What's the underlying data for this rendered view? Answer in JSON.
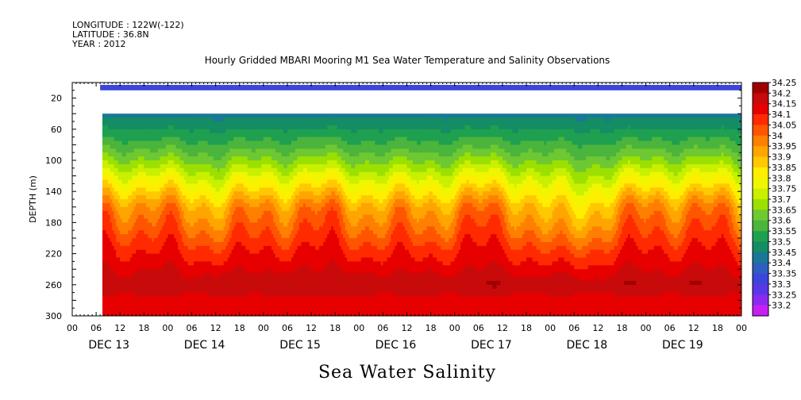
{
  "header": {
    "longitude": "LONGITUDE : 122W(-122)",
    "latitude": "LATITUDE : 36.8N",
    "year": "YEAR : 2012"
  },
  "chart_data": {
    "type": "heatmap",
    "title": "Hourly Gridded MBARI Mooring M1 Sea Water Temperature and Salinity Observations",
    "variable_label": "Sea Water Salinity",
    "ylabel": "DEPTH (m)",
    "y_reversed": true,
    "ylim": [
      300,
      0
    ],
    "y_ticks": [
      20,
      60,
      100,
      140,
      180,
      220,
      260,
      300
    ],
    "x_range_hours": [
      0,
      168
    ],
    "x_ticks_hours": [
      "00",
      "06",
      "12",
      "18",
      "00",
      "06",
      "12",
      "18",
      "00",
      "06",
      "12",
      "18",
      "00",
      "06",
      "12",
      "18",
      "00",
      "06",
      "12",
      "18",
      "00",
      "06",
      "12",
      "18",
      "00",
      "06",
      "12",
      "18",
      "00"
    ],
    "x_days": [
      "DEC 13",
      "DEC 14",
      "DEC 15",
      "DEC 16",
      "DEC 17",
      "DEC 18",
      "DEC 19"
    ],
    "data_start_hour": 7,
    "surface_band": {
      "depth_top": 3,
      "depth_bottom": 10,
      "value": 33.35
    },
    "deep_data_top_depth": 40,
    "colorbar_levels": [
      "34.25",
      "34.2",
      "34.15",
      "34.1",
      "34.05",
      "34",
      "33.95",
      "33.9",
      "33.85",
      "33.8",
      "33.75",
      "33.7",
      "33.65",
      "33.6",
      "33.55",
      "33.5",
      "33.45",
      "33.4",
      "33.35",
      "33.3",
      "33.25",
      "33.2"
    ],
    "colorbar_colors": [
      "#a00000",
      "#c80a0a",
      "#e60000",
      "#ff2a00",
      "#ff5500",
      "#ff8000",
      "#ffa500",
      "#ffc800",
      "#ffee00",
      "#f0f500",
      "#c8f000",
      "#9be000",
      "#6ec832",
      "#4bb43c",
      "#1ea050",
      "#148c64",
      "#197896",
      "#2d5fbe",
      "#3c46dc",
      "#5a37e6",
      "#8c28f0",
      "#c81ef5"
    ],
    "depth_profile_median": [
      {
        "depth": 40,
        "value": 33.48
      },
      {
        "depth": 60,
        "value": 33.55
      },
      {
        "depth": 80,
        "value": 33.62
      },
      {
        "depth": 100,
        "value": 33.7
      },
      {
        "depth": 120,
        "value": 33.8
      },
      {
        "depth": 140,
        "value": 33.9
      },
      {
        "depth": 160,
        "value": 34.0
      },
      {
        "depth": 180,
        "value": 34.05
      },
      {
        "depth": 200,
        "value": 34.1
      },
      {
        "depth": 220,
        "value": 34.15
      },
      {
        "depth": 240,
        "value": 34.18
      },
      {
        "depth": 260,
        "value": 34.22
      },
      {
        "depth": 280,
        "value": 34.18
      },
      {
        "depth": 300,
        "value": 34.15
      }
    ]
  }
}
